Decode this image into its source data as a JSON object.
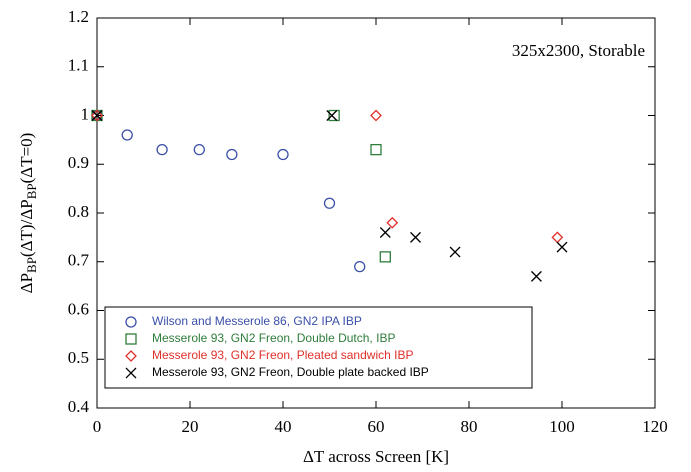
{
  "chart_data": {
    "type": "scatter",
    "annotation": "325x2300, Storable",
    "xlabel": "ΔT across Screen [K]",
    "ylabel_parts": [
      "ΔP",
      "BP",
      "(ΔT)/ΔP",
      "BP",
      "(ΔT=0)"
    ],
    "xlim": [
      0,
      120
    ],
    "xticks": [
      0,
      20,
      40,
      60,
      80,
      100,
      120
    ],
    "ylim": [
      0.4,
      1.2
    ],
    "yticks": [
      0.4,
      0.5,
      0.6,
      0.7,
      0.8,
      0.9,
      1,
      1.1,
      1.2
    ],
    "legend": "lower left",
    "series": [
      {
        "name": "Wilson and Messerole 86, GN2 IPA IBP",
        "color": "#3a4fa8",
        "marker": "circle",
        "x": [
          0,
          6.5,
          14,
          22,
          29,
          40,
          50,
          56.5
        ],
        "values": [
          1,
          0.96,
          0.93,
          0.93,
          0.92,
          0.92,
          0.82,
          0.69
        ]
      },
      {
        "name": "Messerole 93, GN2 Freon, Double Dutch, IBP",
        "color": "#2e7d3a",
        "marker": "square",
        "x": [
          0,
          51,
          60,
          62
        ],
        "values": [
          1,
          1,
          0.93,
          0.71
        ]
      },
      {
        "name": "Messerole 93, GN2 Freon, Pleated sandwich IBP",
        "color": "#e0302a",
        "marker": "diamond",
        "x": [
          0,
          60,
          63.5,
          99
        ],
        "values": [
          1,
          1,
          0.78,
          0.75
        ]
      },
      {
        "name": "Messerole 93, GN2 Freon, Double plate backed IBP",
        "color": "#000000",
        "marker": "x",
        "x": [
          0,
          50.5,
          62,
          68.5,
          77,
          94.5,
          100
        ],
        "values": [
          1,
          1,
          0.76,
          0.75,
          0.72,
          0.67,
          0.73
        ]
      }
    ]
  }
}
